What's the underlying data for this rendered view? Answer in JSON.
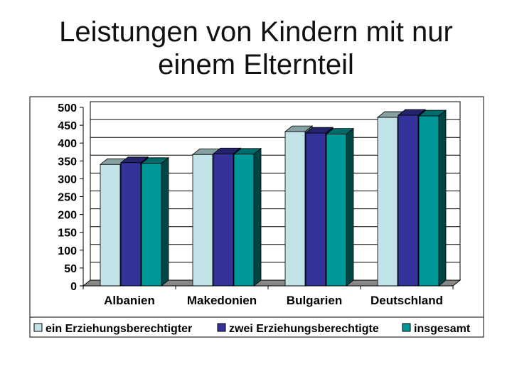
{
  "title_line1": "Leistungen von Kindern mit nur",
  "title_line2": "einem Elternteil",
  "chart_data": {
    "type": "bar",
    "style": "3d-clustered-column",
    "categories": [
      "Albanien",
      "Makedonien",
      "Bulgarien",
      "Deutschland"
    ],
    "series": [
      {
        "name": "ein Erziehungsberechtigter",
        "values": [
          340,
          368,
          432,
          472
        ],
        "color": "#bfe3e6"
      },
      {
        "name": "zwei Erziehungsberechtigte",
        "values": [
          345,
          370,
          428,
          478
        ],
        "color": "#33339a"
      },
      {
        "name": "insgesamt",
        "values": [
          343,
          369,
          425,
          476
        ],
        "color": "#009999"
      }
    ],
    "ylim": [
      0,
      500
    ],
    "yticks": [
      0,
      50,
      100,
      150,
      200,
      250,
      300,
      350,
      400,
      450,
      500
    ],
    "grid": true,
    "legend_position": "bottom"
  }
}
